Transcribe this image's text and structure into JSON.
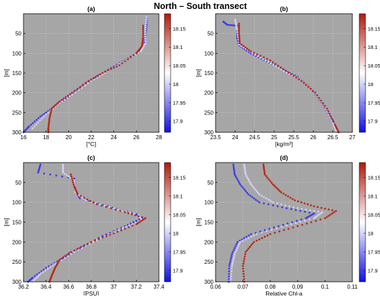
{
  "figure_title": "North – South transect",
  "colorbar": {
    "min": 17.87,
    "max": 18.19,
    "ticks": [
      "18.15",
      "18.1",
      "18.05",
      "18",
      "17.95",
      "17.9"
    ],
    "tick_values": [
      18.15,
      18.1,
      18.05,
      18,
      17.95,
      17.9
    ],
    "colors": [
      "#1010e6",
      "#ffffff",
      "#b21a0c"
    ]
  },
  "colors": {
    "panel_bg": "#a6a6a6",
    "grid": "#cfcfcf",
    "deep_blue": "#1a1acc",
    "dark_red": "#9e1b12"
  },
  "chart_data": [
    {
      "type": "scatter",
      "panel_label": "(a)",
      "xlabel": "[°C]",
      "ylabel": "[m]",
      "xlim": [
        16,
        28
      ],
      "ylim": [
        300,
        0
      ],
      "xticks": [
        16,
        18,
        20,
        22,
        24,
        26,
        28
      ],
      "yticks": [
        50,
        100,
        150,
        200,
        250,
        300
      ],
      "grid": true,
      "series": [
        {
          "color_value": 17.9,
          "points": [
            [
              26.9,
              8
            ],
            [
              26.9,
              30
            ],
            [
              26.8,
              60
            ],
            [
              26.7,
              80
            ],
            [
              26.0,
              100
            ],
            [
              24.5,
              125
            ],
            [
              23.0,
              150
            ],
            [
              21.5,
              175
            ],
            [
              20.0,
              210
            ],
            [
              18.5,
              240
            ],
            [
              17.5,
              260
            ],
            [
              16.5,
              285
            ],
            [
              16.0,
              300
            ]
          ]
        },
        {
          "color_value": 18.0,
          "points": [
            [
              26.9,
              8
            ],
            [
              26.8,
              40
            ],
            [
              26.8,
              75
            ],
            [
              26.4,
              95
            ],
            [
              25.0,
              118
            ],
            [
              23.5,
              145
            ],
            [
              22.0,
              170
            ],
            [
              20.3,
              205
            ],
            [
              19.0,
              230
            ],
            [
              17.8,
              260
            ],
            [
              16.8,
              290
            ]
          ]
        },
        {
          "color_value": 18.18,
          "points": [
            [
              26.6,
              30
            ],
            [
              26.6,
              60
            ],
            [
              26.5,
              82
            ],
            [
              26.0,
              100
            ],
            [
              24.5,
              130
            ],
            [
              23.0,
              150
            ],
            [
              21.8,
              170
            ],
            [
              20.3,
              200
            ],
            [
              19.2,
              222
            ],
            [
              18.5,
              240
            ],
            [
              18.3,
              265
            ],
            [
              18.2,
              290
            ],
            [
              18.2,
              300
            ]
          ]
        }
      ]
    },
    {
      "type": "scatter",
      "panel_label": "(b)",
      "xlabel": "[kg/m³]",
      "ylabel": "[m]",
      "xlim": [
        23.5,
        27
      ],
      "ylim": [
        300,
        0
      ],
      "xticks": [
        23.5,
        24,
        24.5,
        25,
        25.5,
        26,
        26.5,
        27
      ],
      "yticks": [
        50,
        100,
        150,
        200,
        250,
        300
      ],
      "grid": true,
      "series": [
        {
          "color_value": 17.9,
          "points": [
            [
              23.7,
              20
            ],
            [
              23.8,
              28
            ],
            [
              24.05,
              30
            ],
            [
              24.05,
              60
            ],
            [
              24.1,
              80
            ],
            [
              24.4,
              100
            ],
            [
              24.8,
              120
            ],
            [
              25.2,
              140
            ],
            [
              25.6,
              160
            ],
            [
              25.95,
              190
            ],
            [
              26.25,
              230
            ],
            [
              26.5,
              270
            ],
            [
              26.6,
              300
            ]
          ]
        },
        {
          "color_value": 18.0,
          "points": [
            [
              24.0,
              15
            ],
            [
              24.05,
              40
            ],
            [
              24.1,
              78
            ],
            [
              24.45,
              100
            ],
            [
              24.85,
              122
            ],
            [
              25.25,
              145
            ],
            [
              25.65,
              165
            ],
            [
              26.0,
              195
            ],
            [
              26.3,
              235
            ],
            [
              26.5,
              275
            ],
            [
              26.6,
              300
            ]
          ]
        },
        {
          "color_value": 18.18,
          "points": [
            [
              24.1,
              25
            ],
            [
              24.1,
              50
            ],
            [
              24.12,
              75
            ],
            [
              24.4,
              95
            ],
            [
              24.9,
              118
            ],
            [
              25.3,
              145
            ],
            [
              25.7,
              170
            ],
            [
              26.05,
              200
            ],
            [
              26.35,
              240
            ],
            [
              26.55,
              280
            ],
            [
              26.65,
              300
            ]
          ]
        }
      ]
    },
    {
      "type": "scatter",
      "panel_label": "(c)",
      "xlabel": "[PSU]",
      "ylabel": "[m]",
      "xlim": [
        36.2,
        37.4
      ],
      "ylim": [
        300,
        0
      ],
      "xticks": [
        36.2,
        36.4,
        36.6,
        36.8,
        37,
        37.2,
        37.4
      ],
      "yticks": [
        50,
        100,
        150,
        200,
        250,
        300
      ],
      "grid": true,
      "series": [
        {
          "color_value": 17.9,
          "points": [
            [
              36.35,
              5
            ],
            [
              36.33,
              25
            ],
            [
              36.65,
              40
            ],
            [
              36.66,
              70
            ],
            [
              36.7,
              90
            ],
            [
              36.95,
              110
            ],
            [
              37.2,
              130
            ],
            [
              37.25,
              140
            ],
            [
              37.1,
              160
            ],
            [
              36.9,
              185
            ],
            [
              36.7,
              215
            ],
            [
              36.55,
              240
            ],
            [
              36.4,
              265
            ],
            [
              36.28,
              290
            ],
            [
              36.24,
              300
            ]
          ]
        },
        {
          "color_value": 18.0,
          "points": [
            [
              36.55,
              5
            ],
            [
              36.55,
              25
            ],
            [
              36.65,
              45
            ],
            [
              36.66,
              75
            ],
            [
              36.75,
              95
            ],
            [
              37.0,
              115
            ],
            [
              37.22,
              132
            ],
            [
              37.25,
              145
            ],
            [
              37.08,
              165
            ],
            [
              36.85,
              195
            ],
            [
              36.65,
              225
            ],
            [
              36.48,
              255
            ],
            [
              36.35,
              280
            ],
            [
              36.28,
              300
            ]
          ]
        },
        {
          "color_value": 18.18,
          "points": [
            [
              36.62,
              30
            ],
            [
              36.65,
              60
            ],
            [
              36.68,
              80
            ],
            [
              36.85,
              105
            ],
            [
              37.1,
              125
            ],
            [
              37.28,
              140
            ],
            [
              37.2,
              155
            ],
            [
              37.0,
              178
            ],
            [
              36.8,
              200
            ],
            [
              36.62,
              225
            ],
            [
              36.52,
              245
            ],
            [
              36.48,
              265
            ],
            [
              36.45,
              285
            ],
            [
              36.43,
              300
            ]
          ]
        }
      ]
    },
    {
      "type": "scatter",
      "panel_label": "(d)",
      "xlabel": "Relative Chl-a",
      "ylabel": "[m]",
      "xlim": [
        0.06,
        0.11
      ],
      "ylim": [
        300,
        0
      ],
      "xticks": [
        0.06,
        0.07,
        0.08,
        0.09,
        0.1,
        0.11
      ],
      "yticks": [
        50,
        100,
        150,
        200,
        250,
        300
      ],
      "grid": true,
      "series": [
        {
          "color_value": 17.9,
          "points": [
            [
              0.0665,
              5
            ],
            [
              0.067,
              30
            ],
            [
              0.069,
              55
            ],
            [
              0.072,
              80
            ],
            [
              0.076,
              100
            ],
            [
              0.086,
              115
            ],
            [
              0.096,
              128
            ],
            [
              0.093,
              140
            ],
            [
              0.083,
              160
            ],
            [
              0.073,
              180
            ],
            [
              0.068,
              200
            ],
            [
              0.066,
              230
            ],
            [
              0.065,
              260
            ],
            [
              0.0648,
              300
            ]
          ]
        },
        {
          "color_value": 18.0,
          "points": [
            [
              0.0705,
              5
            ],
            [
              0.071,
              30
            ],
            [
              0.073,
              55
            ],
            [
              0.076,
              80
            ],
            [
              0.081,
              100
            ],
            [
              0.09,
              115
            ],
            [
              0.099,
              125
            ],
            [
              0.096,
              140
            ],
            [
              0.086,
              158
            ],
            [
              0.075,
              180
            ],
            [
              0.069,
              200
            ],
            [
              0.067,
              230
            ],
            [
              0.066,
              260
            ],
            [
              0.0655,
              300
            ]
          ]
        },
        {
          "color_value": 18.18,
          "points": [
            [
              0.0775,
              5
            ],
            [
              0.078,
              30
            ],
            [
              0.081,
              55
            ],
            [
              0.084,
              75
            ],
            [
              0.089,
              95
            ],
            [
              0.096,
              110
            ],
            [
              0.104,
              122
            ],
            [
              0.1,
              140
            ],
            [
              0.09,
              160
            ],
            [
              0.08,
              180
            ],
            [
              0.074,
              200
            ],
            [
              0.071,
              225
            ],
            [
              0.07,
              260
            ],
            [
              0.0705,
              300
            ]
          ]
        }
      ]
    }
  ]
}
